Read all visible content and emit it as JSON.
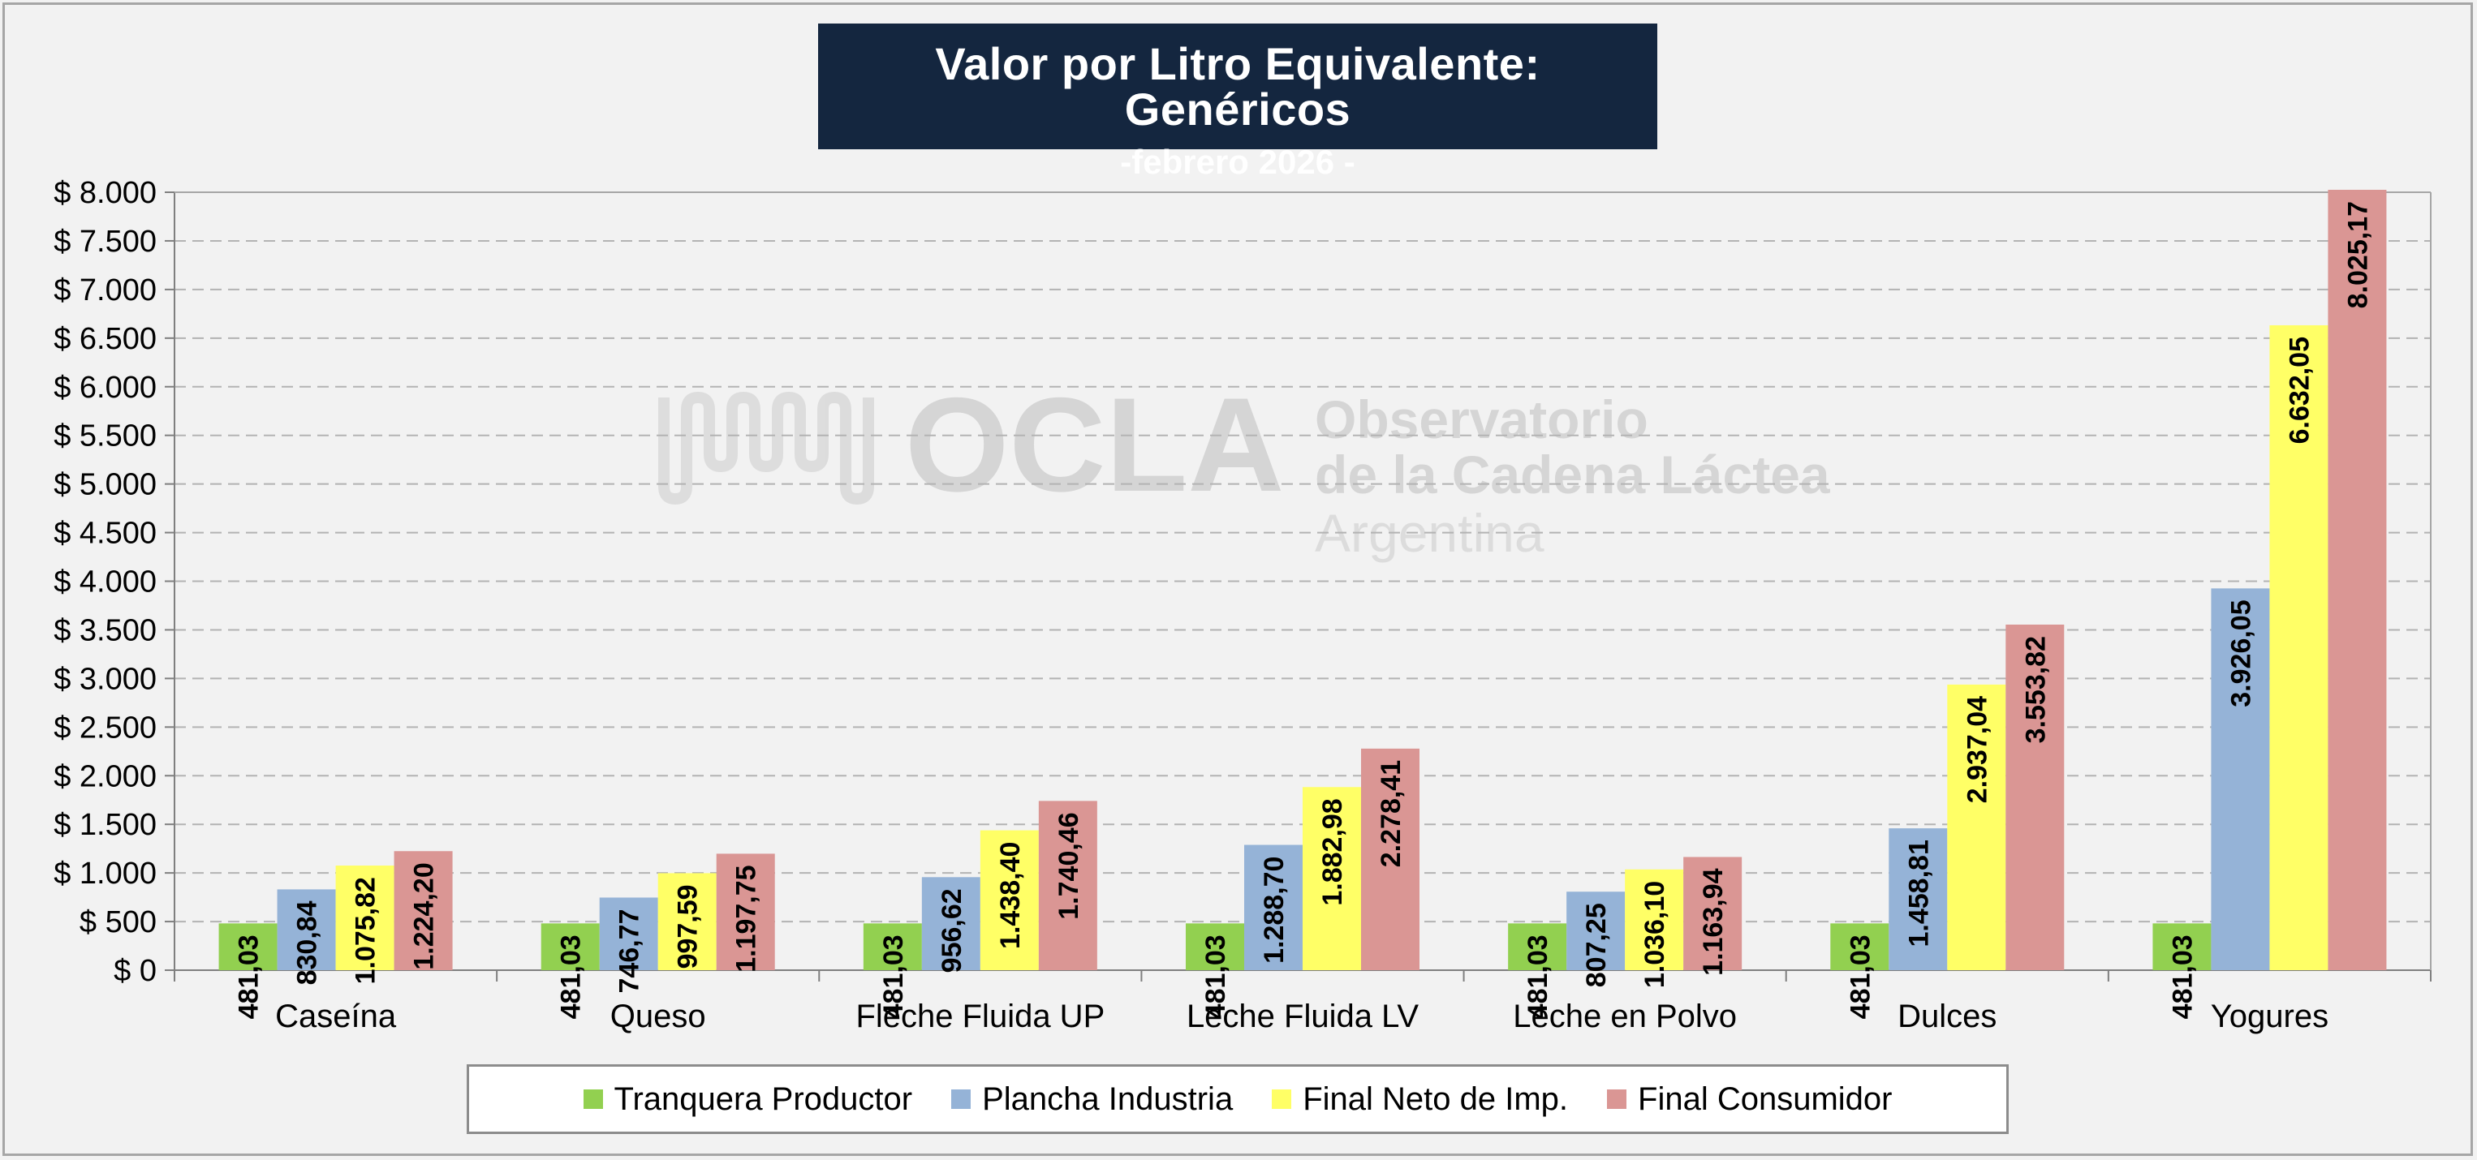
{
  "chart_data": {
    "type": "bar",
    "title": "Valor por Litro Equivalente: Genéricos",
    "subtitle": "-febrero 2026 -",
    "categories": [
      "Caseína",
      "Queso",
      "Fleche Fluida UP",
      "Leche Fluida LV",
      "Leche en Polvo",
      "Dulces",
      "Yogures"
    ],
    "series": [
      {
        "name": "Tranquera Productor",
        "color": "#92d050",
        "values": [
          481.03,
          481.03,
          481.03,
          481.03,
          481.03,
          481.03,
          481.03
        ],
        "labels": [
          "481,03",
          "481,03",
          "481,03",
          "481,03",
          "481,03",
          "481,03",
          "481,03"
        ]
      },
      {
        "name": "Plancha Industria",
        "color": "#95b3d7",
        "values": [
          830.84,
          746.77,
          956.62,
          1288.7,
          807.25,
          1458.81,
          3926.05
        ],
        "labels": [
          "830,84",
          "746,77",
          "956,62",
          "1.288,70",
          "807,25",
          "1.458,81",
          "3.926,05"
        ]
      },
      {
        "name": "Final Neto de Imp.",
        "color": "#ffff66",
        "values": [
          1075.82,
          997.59,
          1438.4,
          1882.98,
          1036.1,
          2937.04,
          6632.05
        ],
        "labels": [
          "1.075,82",
          "997,59",
          "1.438,40",
          "1.882,98",
          "1.036,10",
          "2.937,04",
          "6.632,05"
        ]
      },
      {
        "name": "Final Consumidor",
        "color": "#da9694",
        "values": [
          1224.2,
          1197.75,
          1740.46,
          2278.41,
          1163.94,
          3553.82,
          8025.17
        ],
        "labels": [
          "1.224,20",
          "1.197,75",
          "1.740,46",
          "2.278,41",
          "1.163,94",
          "3.553,82",
          "8.025,17"
        ]
      }
    ],
    "ylim": [
      0,
      8000
    ],
    "yticks": [
      0,
      500,
      1000,
      1500,
      2000,
      2500,
      3000,
      3500,
      4000,
      4500,
      5000,
      5500,
      6000,
      6500,
      7000,
      7500,
      8000
    ],
    "ytick_labels": [
      "$ 0",
      "$ 500",
      "$ 1.000",
      "$ 1.500",
      "$ 2.000",
      "$ 2.500",
      "$ 3.000",
      "$ 3.500",
      "$ 4.000",
      "$ 4.500",
      "$ 5.000",
      "$ 5.500",
      "$ 6.000",
      "$ 6.500",
      "$ 7.000",
      "$ 7.500",
      "$ 8.000"
    ],
    "grid": "horizontal-dashed",
    "legend_position": "bottom"
  },
  "watermark": {
    "logo_text": "OCLA",
    "line1": "Observatorio",
    "line2": "de la Cadena Láctea",
    "line3": "Argentina"
  }
}
